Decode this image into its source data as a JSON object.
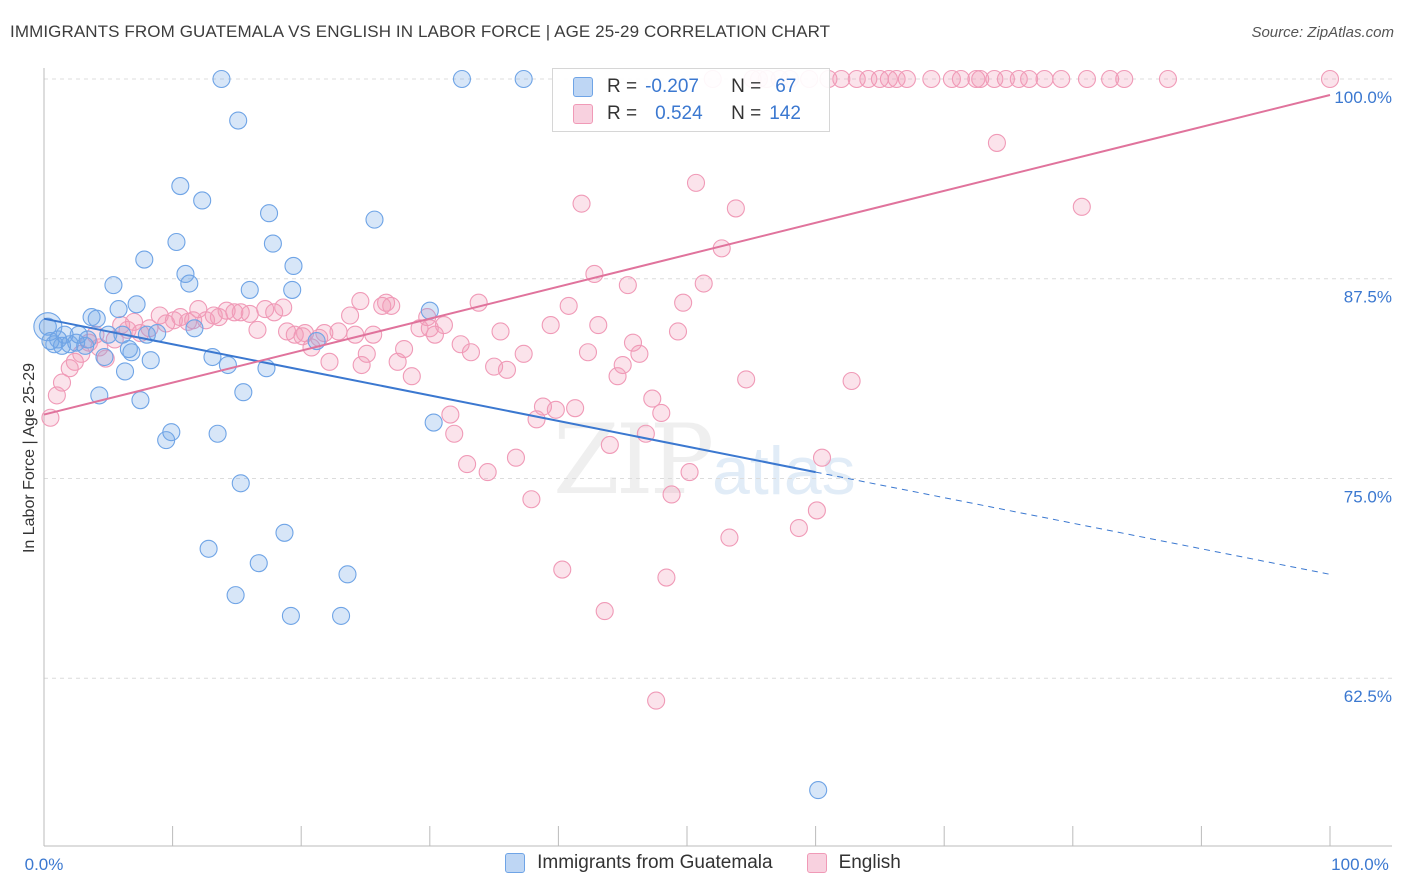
{
  "title": "IMMIGRANTS FROM GUATEMALA VS ENGLISH IN LABOR FORCE | AGE 25-29 CORRELATION CHART",
  "source": "Source: ZipAtlas.com",
  "watermark": {
    "zip": "ZIP",
    "atlas": "atlas"
  },
  "legend": {
    "r_label": "R =",
    "n_label": "N =",
    "rows": [
      {
        "r": "-0.207",
        "n": "67",
        "color": "#6fa4e6"
      },
      {
        "r": "0.524",
        "n": "142",
        "color": "#f09ab7"
      }
    ]
  },
  "bottom_legend": [
    {
      "label": "Immigrants from Guatemala",
      "color": "#6fa4e6"
    },
    {
      "label": "English",
      "color": "#f09ab7"
    }
  ],
  "chart_data": {
    "type": "scatter",
    "title": "IMMIGRANTS FROM GUATEMALA VS ENGLISH IN LABOR FORCE | AGE 25-29 CORRELATION CHART",
    "xlabel": "",
    "ylabel": "In Labor Force | Age 25-29",
    "xlim": [
      0,
      100
    ],
    "ylim": [
      52,
      100
    ],
    "x_tick_labels": [
      "0.0%",
      "100.0%"
    ],
    "y_ticks": [
      62.5,
      75.0,
      87.5,
      100.0
    ],
    "y_tick_labels": [
      "62.5%",
      "75.0%",
      "87.5%",
      "100.0%"
    ],
    "grid": true,
    "legend_position": "top-center",
    "series": [
      {
        "name": "Immigrants from Guatemala",
        "color": "#6fa4e6",
        "trend": {
          "x0": 0,
          "y0": 85.0,
          "x1": 60,
          "y1": 75.4,
          "dash_to_x": 100,
          "dash_to_y": 69.0
        },
        "points": [
          [
            0.3,
            84.5
          ],
          [
            0.5,
            83.6
          ],
          [
            0.8,
            83.4
          ],
          [
            1.1,
            83.7
          ],
          [
            1.4,
            83.3
          ],
          [
            1.6,
            84.0
          ],
          [
            2.0,
            83.4
          ],
          [
            2.5,
            83.5
          ],
          [
            2.7,
            84.0
          ],
          [
            3.2,
            83.3
          ],
          [
            3.4,
            83.7
          ],
          [
            3.7,
            85.1
          ],
          [
            4.1,
            85.0
          ],
          [
            4.3,
            80.2
          ],
          [
            4.7,
            82.6
          ],
          [
            5.0,
            84.0
          ],
          [
            5.4,
            87.1
          ],
          [
            5.8,
            85.6
          ],
          [
            6.1,
            84.0
          ],
          [
            6.3,
            81.7
          ],
          [
            6.6,
            83.1
          ],
          [
            6.8,
            82.9
          ],
          [
            7.2,
            85.9
          ],
          [
            7.5,
            79.9
          ],
          [
            7.8,
            88.7
          ],
          [
            8.0,
            84.0
          ],
          [
            8.3,
            82.4
          ],
          [
            8.8,
            84.1
          ],
          [
            9.5,
            77.4
          ],
          [
            9.9,
            77.9
          ],
          [
            10.3,
            89.8
          ],
          [
            10.6,
            93.3
          ],
          [
            11.0,
            87.8
          ],
          [
            11.3,
            87.2
          ],
          [
            11.7,
            84.4
          ],
          [
            12.3,
            92.4
          ],
          [
            12.8,
            70.6
          ],
          [
            13.1,
            82.6
          ],
          [
            13.5,
            77.8
          ],
          [
            13.8,
            100.0
          ],
          [
            14.3,
            82.1
          ],
          [
            14.9,
            67.7
          ],
          [
            15.1,
            97.4
          ],
          [
            15.3,
            74.7
          ],
          [
            15.5,
            80.4
          ],
          [
            16.0,
            86.8
          ],
          [
            16.7,
            69.7
          ],
          [
            17.3,
            81.9
          ],
          [
            17.5,
            91.6
          ],
          [
            17.8,
            89.7
          ],
          [
            18.7,
            71.6
          ],
          [
            19.2,
            66.4
          ],
          [
            19.3,
            86.8
          ],
          [
            19.4,
            88.3
          ],
          [
            21.2,
            83.6
          ],
          [
            23.1,
            66.4
          ],
          [
            23.6,
            69.0
          ],
          [
            25.7,
            91.2
          ],
          [
            30.0,
            85.5
          ],
          [
            30.3,
            78.5
          ],
          [
            32.5,
            100.0
          ],
          [
            37.3,
            100.0
          ],
          [
            60.2,
            55.5
          ]
        ]
      },
      {
        "name": "English",
        "color": "#f09ab7",
        "trend": {
          "x0": 0,
          "y0": 79.0,
          "x1": 100,
          "y1": 99.0
        },
        "points": [
          [
            0.5,
            78.8
          ],
          [
            1.0,
            80.2
          ],
          [
            1.4,
            81.0
          ],
          [
            2.0,
            81.9
          ],
          [
            2.4,
            82.3
          ],
          [
            2.9,
            82.8
          ],
          [
            3.5,
            83.5
          ],
          [
            4.0,
            84.0
          ],
          [
            4.3,
            83.2
          ],
          [
            4.8,
            82.5
          ],
          [
            5.5,
            83.7
          ],
          [
            6.0,
            84.6
          ],
          [
            6.5,
            84.3
          ],
          [
            7.0,
            84.8
          ],
          [
            7.5,
            84.1
          ],
          [
            8.2,
            84.4
          ],
          [
            9.0,
            85.2
          ],
          [
            9.5,
            84.7
          ],
          [
            10.1,
            84.9
          ],
          [
            10.6,
            85.1
          ],
          [
            11.2,
            84.8
          ],
          [
            11.6,
            84.9
          ],
          [
            12.0,
            85.6
          ],
          [
            12.6,
            84.9
          ],
          [
            13.2,
            85.2
          ],
          [
            13.6,
            85.1
          ],
          [
            14.2,
            85.5
          ],
          [
            14.8,
            85.4
          ],
          [
            15.3,
            85.4
          ],
          [
            16.0,
            85.3
          ],
          [
            16.6,
            84.3
          ],
          [
            17.2,
            85.6
          ],
          [
            17.9,
            85.4
          ],
          [
            18.6,
            85.7
          ],
          [
            18.9,
            84.2
          ],
          [
            19.5,
            84.0
          ],
          [
            20.1,
            83.9
          ],
          [
            20.8,
            83.2
          ],
          [
            21.4,
            83.8
          ],
          [
            21.8,
            84.1
          ],
          [
            22.2,
            82.3
          ],
          [
            22.9,
            84.2
          ],
          [
            23.8,
            85.2
          ],
          [
            24.2,
            84.0
          ],
          [
            24.6,
            86.1
          ],
          [
            25.1,
            82.8
          ],
          [
            25.6,
            84.0
          ],
          [
            26.3,
            85.8
          ],
          [
            26.6,
            86.0
          ],
          [
            27.0,
            85.8
          ],
          [
            27.5,
            82.3
          ],
          [
            28.0,
            83.1
          ],
          [
            28.6,
            81.4
          ],
          [
            29.2,
            84.4
          ],
          [
            29.8,
            85.1
          ],
          [
            30.4,
            84.0
          ],
          [
            31.1,
            84.6
          ],
          [
            31.6,
            79.0
          ],
          [
            31.9,
            77.8
          ],
          [
            32.4,
            83.4
          ],
          [
            32.9,
            75.9
          ],
          [
            33.2,
            82.9
          ],
          [
            33.8,
            86.0
          ],
          [
            34.5,
            75.4
          ],
          [
            35.0,
            82.0
          ],
          [
            35.5,
            84.2
          ],
          [
            36.0,
            81.8
          ],
          [
            36.7,
            76.3
          ],
          [
            37.3,
            82.8
          ],
          [
            37.9,
            73.7
          ],
          [
            38.3,
            78.7
          ],
          [
            38.8,
            79.5
          ],
          [
            39.4,
            84.6
          ],
          [
            39.8,
            79.3
          ],
          [
            40.3,
            69.3
          ],
          [
            40.8,
            85.8
          ],
          [
            41.3,
            79.4
          ],
          [
            41.8,
            92.2
          ],
          [
            42.3,
            82.9
          ],
          [
            42.8,
            87.8
          ],
          [
            43.1,
            84.6
          ],
          [
            43.6,
            66.7
          ],
          [
            44.0,
            77.1
          ],
          [
            44.6,
            81.4
          ],
          [
            45.0,
            82.1
          ],
          [
            45.4,
            87.1
          ],
          [
            45.8,
            83.5
          ],
          [
            46.3,
            82.8
          ],
          [
            46.8,
            77.8
          ],
          [
            47.3,
            80.0
          ],
          [
            47.6,
            61.1
          ],
          [
            48.0,
            79.1
          ],
          [
            48.4,
            68.8
          ],
          [
            48.8,
            74.0
          ],
          [
            49.3,
            84.2
          ],
          [
            49.7,
            86.0
          ],
          [
            50.2,
            75.4
          ],
          [
            50.7,
            93.5
          ],
          [
            51.3,
            87.2
          ],
          [
            52.0,
            100.0
          ],
          [
            52.7,
            89.4
          ],
          [
            53.3,
            71.3
          ],
          [
            53.8,
            91.9
          ],
          [
            54.6,
            81.2
          ],
          [
            55.1,
            100.0
          ],
          [
            55.6,
            100.0
          ],
          [
            56.2,
            100.0
          ],
          [
            57.2,
            100.0
          ],
          [
            58.0,
            100.0
          ],
          [
            58.7,
            71.9
          ],
          [
            59.5,
            100.0
          ],
          [
            60.1,
            73.0
          ],
          [
            60.5,
            76.3
          ],
          [
            61.0,
            100.0
          ],
          [
            62.0,
            100.0
          ],
          [
            62.8,
            81.1
          ],
          [
            63.2,
            100.0
          ],
          [
            64.1,
            100.0
          ],
          [
            65.0,
            100.0
          ],
          [
            65.7,
            100.0
          ],
          [
            66.3,
            100.0
          ],
          [
            67.1,
            100.0
          ],
          [
            69.0,
            100.0
          ],
          [
            70.6,
            100.0
          ],
          [
            71.3,
            100.0
          ],
          [
            72.5,
            100.0
          ],
          [
            72.8,
            100.0
          ],
          [
            73.9,
            100.0
          ],
          [
            74.1,
            96.0
          ],
          [
            74.8,
            100.0
          ],
          [
            75.8,
            100.0
          ],
          [
            76.6,
            100.0
          ],
          [
            77.8,
            100.0
          ],
          [
            79.1,
            100.0
          ],
          [
            80.7,
            92.0
          ],
          [
            81.1,
            100.0
          ],
          [
            82.9,
            100.0
          ],
          [
            84.0,
            100.0
          ],
          [
            87.4,
            100.0
          ],
          [
            100.0,
            100.0
          ],
          [
            20.3,
            84.1
          ],
          [
            24.7,
            82.1
          ],
          [
            30.0,
            84.4
          ]
        ]
      }
    ]
  }
}
